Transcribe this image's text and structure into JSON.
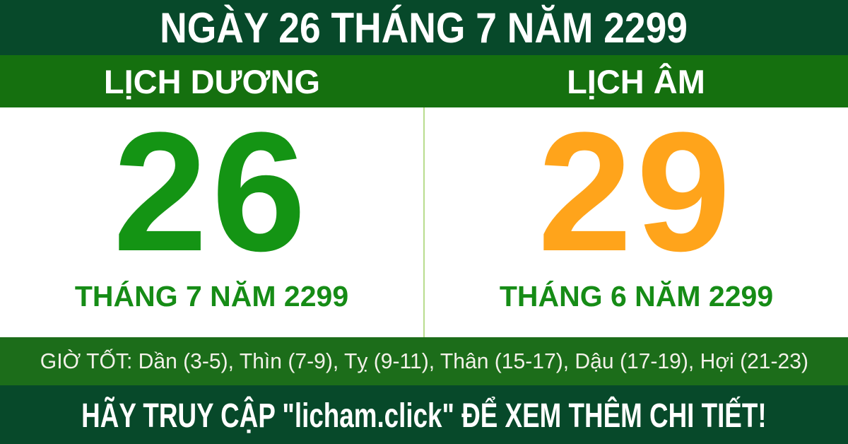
{
  "header": {
    "title": "NGÀY 26 THÁNG 7 NĂM 2299"
  },
  "solar": {
    "label": "LỊCH DƯƠNG",
    "day": "26",
    "month_year": "THÁNG 7 NĂM 2299"
  },
  "lunar": {
    "label": "LỊCH ÂM",
    "day": "29",
    "month_year": "THÁNG 6 NĂM 2299"
  },
  "good_hours": {
    "text": "GIỜ TỐT: Dần (3-5), Thìn (7-9), Tỵ (9-11), Thân (15-17), Dậu (17-19), Hợi (21-23)"
  },
  "footer": {
    "text": "HÃY TRUY CẬP \"licham.click\" ĐỂ XEM THÊM CHI TIẾT!"
  },
  "colors": {
    "dark_green": "#07492a",
    "bar_green": "#15700f",
    "hours_green": "#1c6d1a",
    "solar_day": "#149414",
    "month_text": "#168c16",
    "lunar_day": "#ffa41b",
    "divider": "#b9dc8e",
    "panel_bg": "#ffffff",
    "light_text": "#f2f1e8"
  }
}
